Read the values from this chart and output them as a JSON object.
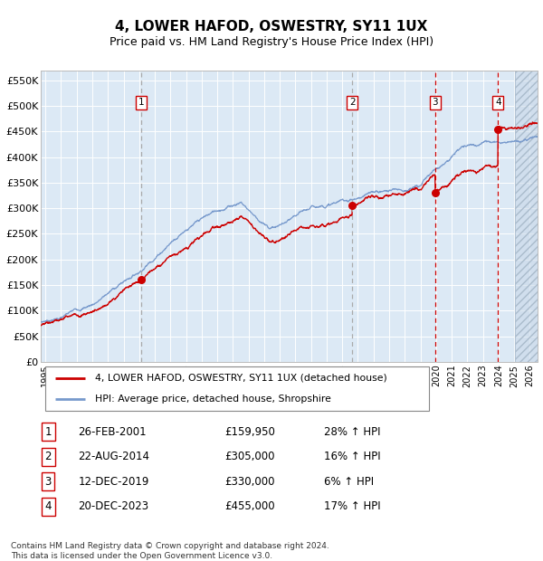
{
  "title": "4, LOWER HAFOD, OSWESTRY, SY11 1UX",
  "subtitle": "Price paid vs. HM Land Registry's House Price Index (HPI)",
  "title_fontsize": 11,
  "subtitle_fontsize": 9,
  "background_color": "#ffffff",
  "plot_bg_color": "#dce9f5",
  "grid_color": "#ffffff",
  "ylabel_vals": [
    0,
    50000,
    100000,
    150000,
    200000,
    250000,
    300000,
    350000,
    400000,
    450000,
    500000,
    550000
  ],
  "ylabel_labels": [
    "£0",
    "£50K",
    "£100K",
    "£150K",
    "£200K",
    "£250K",
    "£300K",
    "£350K",
    "£400K",
    "£450K",
    "£500K",
    "£550K"
  ],
  "xlim": [
    1994.7,
    2026.5
  ],
  "ylim": [
    0,
    570000
  ],
  "transactions": [
    {
      "num": 1,
      "date_str": "26-FEB-2001",
      "date_x": 2001.15,
      "price": 159950,
      "pct": "28%"
    },
    {
      "num": 2,
      "date_str": "22-AUG-2014",
      "date_x": 2014.64,
      "price": 305000,
      "pct": "16%"
    },
    {
      "num": 3,
      "date_str": "12-DEC-2019",
      "date_x": 2019.95,
      "price": 330000,
      "pct": "6%"
    },
    {
      "num": 4,
      "date_str": "20-DEC-2023",
      "date_x": 2023.97,
      "price": 455000,
      "pct": "17%"
    }
  ],
  "legend_line1": "4, LOWER HAFOD, OSWESTRY, SY11 1UX (detached house)",
  "legend_line2": "HPI: Average price, detached house, Shropshire",
  "footer": "Contains HM Land Registry data © Crown copyright and database right 2024.\nThis data is licensed under the Open Government Licence v3.0.",
  "red_line_color": "#cc0000",
  "blue_line_color": "#7799cc",
  "vline_gray": "#aaaaaa",
  "vline_red": "#cc0000",
  "box_color": "#cc0000"
}
